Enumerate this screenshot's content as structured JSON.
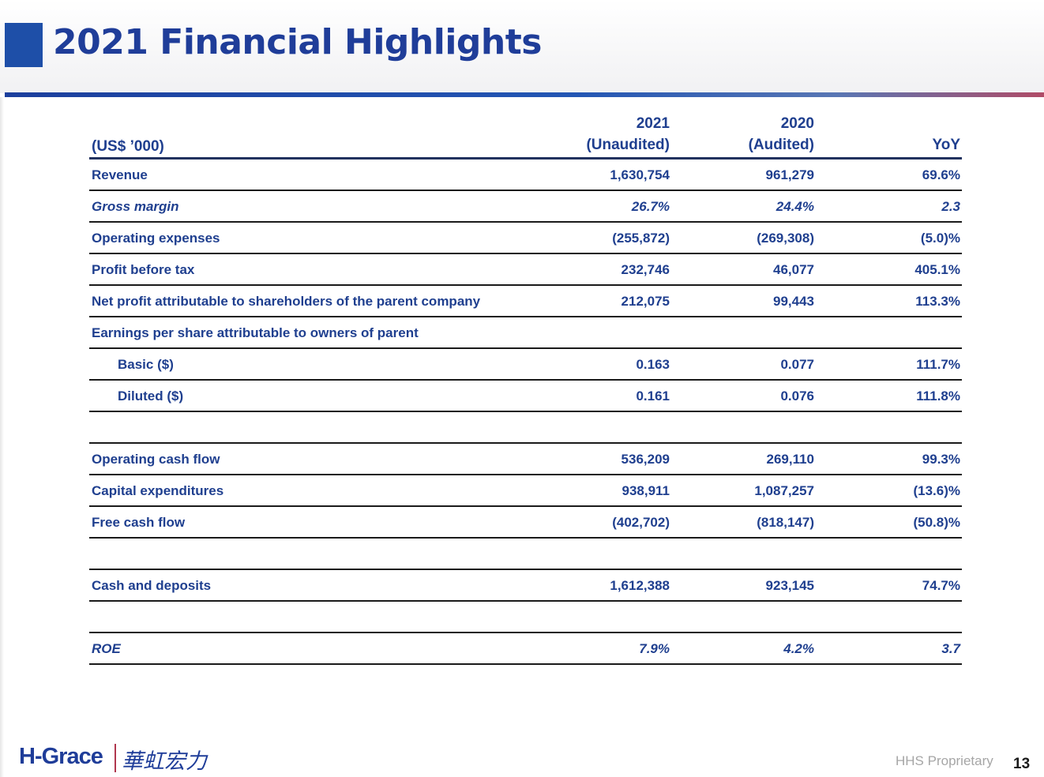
{
  "slide": {
    "title": "2021 Financial Highlights",
    "page_number": "13",
    "footer_note": "HHS Proprietary",
    "logo_text_en": "H-Grace",
    "logo_text_cn": "華虹宏力"
  },
  "table": {
    "unit_label": "(US$ ’000)",
    "col1": {
      "year": "2021",
      "note": "(Unaudited)"
    },
    "col2": {
      "year": "2020",
      "note": "(Audited)"
    },
    "col3": {
      "label": "YoY"
    },
    "rows": [
      {
        "label": "Revenue",
        "v2021": "1,630,754",
        "v2020": "961,279",
        "yoy": "69.6%"
      },
      {
        "label": "Gross margin",
        "v2021": "26.7%",
        "v2020": "24.4%",
        "yoy": "2.3"
      },
      {
        "label": "Operating expenses",
        "v2021": "(255,872)",
        "v2020": "(269,308)",
        "yoy": "(5.0)%"
      },
      {
        "label": "Profit before tax",
        "v2021": "232,746",
        "v2020": "46,077",
        "yoy": "405.1%"
      },
      {
        "label": "Net profit attributable to shareholders of the parent company",
        "v2021": "212,075",
        "v2020": "99,443",
        "yoy": "113.3%"
      },
      {
        "label": "Earnings per share attributable to owners of parent",
        "v2021": "",
        "v2020": "",
        "yoy": ""
      },
      {
        "label": "Basic ($)",
        "v2021": "0.163",
        "v2020": "0.077",
        "yoy": "111.7%"
      },
      {
        "label": "Diluted ($)",
        "v2021": "0.161",
        "v2020": "0.076",
        "yoy": "111.8%"
      },
      {
        "label": "",
        "v2021": "",
        "v2020": "",
        "yoy": ""
      },
      {
        "label": "Operating cash flow",
        "v2021": "536,209",
        "v2020": "269,110",
        "yoy": "99.3%"
      },
      {
        "label": "Capital expenditures",
        "v2021": "938,911",
        "v2020": "1,087,257",
        "yoy": "(13.6)%"
      },
      {
        "label": "Free cash flow",
        "v2021": "(402,702)",
        "v2020": "(818,147)",
        "yoy": "(50.8)%"
      },
      {
        "label": "",
        "v2021": "",
        "v2020": "",
        "yoy": ""
      },
      {
        "label": "Cash and deposits",
        "v2021": "1,612,388",
        "v2020": "923,145",
        "yoy": "74.7%"
      },
      {
        "label": "",
        "v2021": "",
        "v2020": "",
        "yoy": ""
      },
      {
        "label": "ROE",
        "v2021": "7.9%",
        "v2020": "4.2%",
        "yoy": "3.7"
      }
    ]
  }
}
